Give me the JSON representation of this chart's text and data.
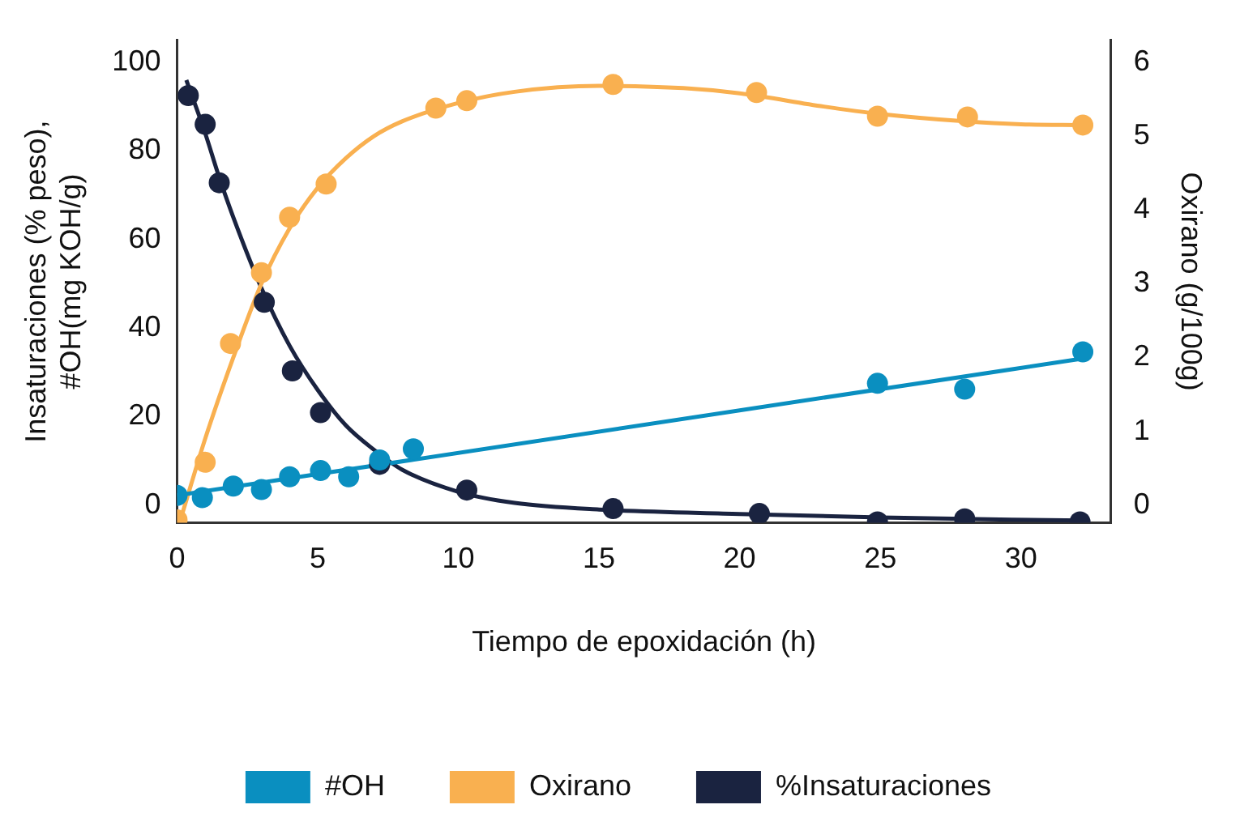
{
  "chart_data": {
    "type": "scatter",
    "xlabel": "Tiempo de epoxidación (h)",
    "ylabel": "Insaturaciones (% peso),\n#OH(mg KOH/g)",
    "y2label": "Oxirano (g/100g)",
    "xlim": [
      0,
      33.2
    ],
    "xticks": [
      0,
      5,
      10,
      15,
      20,
      25,
      30
    ],
    "ylim": [
      -4,
      105
    ],
    "yticks": [
      0,
      20,
      40,
      60,
      80,
      100
    ],
    "y2lim": [
      -0.24,
      6.3
    ],
    "y2ticks": [
      0,
      1,
      2,
      3,
      4,
      5,
      6
    ],
    "grid": false,
    "legend": "bottom",
    "marker": "circle",
    "series": [
      {
        "name": "#OH",
        "color": "#0a8fc0",
        "x": [
          0,
          0.9,
          2.0,
          3.0,
          4.0,
          5.1,
          6.1,
          7.2,
          8.4,
          24.9,
          28.0,
          32.2
        ],
        "values": [
          2.2,
          1.7,
          4.3,
          3.5,
          6.4,
          7.8,
          6.4,
          10.2,
          12.7,
          27.5,
          26.2,
          34.6
        ]
      },
      {
        "name": "Oxirano",
        "axis": "y2",
        "color": "#f9b050",
        "x": [
          0,
          1.0,
          1.9,
          3.0,
          4.0,
          5.3,
          9.2,
          10.3,
          15.5,
          20.6,
          24.9,
          28.1,
          32.2
        ],
        "values": [
          -0.2,
          0.58,
          2.19,
          3.15,
          3.9,
          4.35,
          5.38,
          5.48,
          5.7,
          5.59,
          5.27,
          5.26,
          5.15
        ]
      },
      {
        "name": "%Insaturaciones",
        "color": "#1a2340",
        "x": [
          0.4,
          1.0,
          1.5,
          3.1,
          4.1,
          5.1,
          7.2,
          10.3,
          15.5,
          20.7,
          24.9,
          28.0,
          32.1
        ],
        "values": [
          92.5,
          86,
          72.8,
          45.8,
          30.3,
          20.9,
          9.2,
          3.4,
          -0.8,
          -1.9,
          -3.8,
          -3.1,
          -3.8
        ]
      },
      {
        "type": "line",
        "marker": "none",
        "color": "#0a8fc0",
        "x": [
          0,
          32.2
        ],
        "values": [
          2.2,
          33.1
        ]
      },
      {
        "type": "line",
        "marker": "none",
        "axis": "y2",
        "color": "#f9b050",
        "x": [
          0.2,
          1,
          2,
          3,
          4,
          5,
          6,
          7,
          8,
          10,
          12,
          15,
          18,
          20,
          23,
          25,
          28,
          30,
          32.2
        ],
        "values": [
          -0.1,
          0.9,
          2.0,
          3.0,
          3.75,
          4.3,
          4.7,
          5.0,
          5.2,
          5.45,
          5.6,
          5.68,
          5.65,
          5.58,
          5.4,
          5.3,
          5.2,
          5.16,
          5.15
        ]
      },
      {
        "type": "line",
        "marker": "none",
        "color": "#1a2340",
        "x": [
          0.33,
          1,
          1.5,
          2,
          3,
          4,
          5,
          6,
          7,
          8,
          10,
          12,
          15,
          20,
          25,
          32.2
        ],
        "values": [
          96,
          84,
          74,
          65,
          49,
          36,
          26,
          18,
          12.5,
          8,
          3,
          0.5,
          -1,
          -2,
          -2.8,
          -3.5
        ]
      }
    ]
  }
}
